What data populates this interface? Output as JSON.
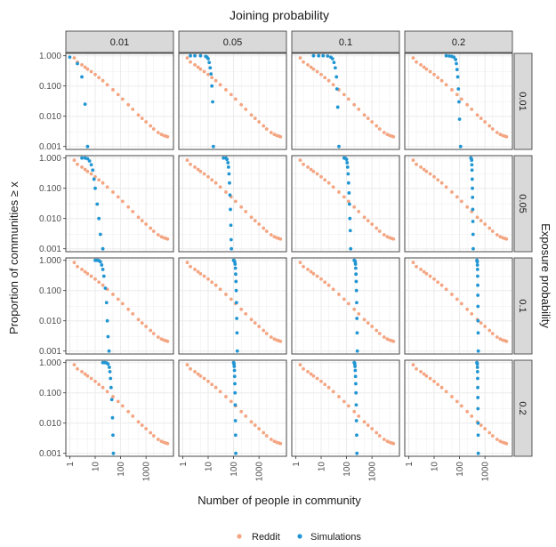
{
  "chart_data": {
    "type": "scatter",
    "title": "Joining probability",
    "xlabel": "Number of people in community",
    "ylabel": "Proportion of communities ≥ x",
    "right_label": "Exposure probability",
    "x_scale": "log",
    "y_scale": "log",
    "xlim": [
      0.7,
      12000
    ],
    "ylim": [
      0.0008,
      1.2
    ],
    "x_ticks": [
      1,
      10,
      100,
      1000
    ],
    "x_tick_labels": [
      "1",
      "10",
      "100",
      "1000"
    ],
    "y_ticks": [
      1,
      0.1,
      0.01,
      0.001
    ],
    "y_tick_labels": [
      "1.000",
      "0.100",
      "0.010",
      "0.001"
    ],
    "grid": true,
    "legend_position": "bottom",
    "column_facets": [
      "0.01",
      "0.05",
      "0.1",
      "0.2"
    ],
    "row_facets": [
      "0.01",
      "0.05",
      "0.1",
      "0.2"
    ],
    "colors": {
      "Reddit": "#f4a582",
      "Simulations": "#2196d3"
    },
    "reddit_series": {
      "name": "Reddit",
      "x": [
        1.5,
        2,
        3,
        4,
        5,
        7,
        10,
        14,
        20,
        30,
        50,
        80,
        120,
        200,
        300,
        500,
        700,
        1000,
        1500,
        2000,
        3000,
        4000,
        5000,
        6000,
        7000
      ],
      "y": [
        0.85,
        0.62,
        0.5,
        0.42,
        0.36,
        0.3,
        0.24,
        0.19,
        0.15,
        0.11,
        0.075,
        0.052,
        0.037,
        0.024,
        0.017,
        0.011,
        0.0085,
        0.0065,
        0.0048,
        0.0038,
        0.0029,
        0.0025,
        0.0023,
        0.0022,
        0.0021
      ]
    },
    "simulation_series": [
      {
        "row": "0.01",
        "col": "0.01",
        "x": [
          1,
          2,
          3,
          4,
          5
        ],
        "y": [
          0.9,
          0.55,
          0.2,
          0.025,
          0.001
        ]
      },
      {
        "row": "0.01",
        "col": "0.05",
        "x": [
          2,
          3,
          5,
          8,
          9,
          10,
          11,
          12,
          13,
          14,
          15,
          16
        ],
        "y": [
          1,
          1,
          1,
          0.95,
          0.9,
          0.8,
          0.6,
          0.4,
          0.25,
          0.1,
          0.03,
          0.001
        ]
      },
      {
        "row": "0.01",
        "col": "0.1",
        "x": [
          5,
          8,
          12,
          18,
          24,
          28,
          32,
          36,
          40,
          42,
          45,
          50
        ],
        "y": [
          1,
          1,
          1,
          0.98,
          0.9,
          0.8,
          0.6,
          0.4,
          0.2,
          0.08,
          0.02,
          0.001
        ]
      },
      {
        "row": "0.01",
        "col": "0.2",
        "x": [
          30,
          40,
          50,
          60,
          70,
          75,
          80,
          85,
          90,
          95,
          100,
          110
        ],
        "y": [
          1,
          0.98,
          0.95,
          0.9,
          0.75,
          0.55,
          0.35,
          0.2,
          0.08,
          0.03,
          0.008,
          0.001
        ]
      },
      {
        "row": "0.05",
        "col": "0.01",
        "x": [
          3,
          4,
          5,
          6,
          7,
          8,
          9,
          10,
          12,
          14,
          16,
          20
        ],
        "y": [
          1,
          1,
          0.95,
          0.8,
          0.6,
          0.4,
          0.2,
          0.1,
          0.03,
          0.01,
          0.003,
          0.001
        ]
      },
      {
        "row": "0.05",
        "col": "0.05",
        "x": [
          40,
          50,
          55,
          60,
          63,
          66,
          69,
          72,
          75,
          78,
          80,
          82
        ],
        "y": [
          1,
          1,
          0.9,
          0.7,
          0.5,
          0.3,
          0.15,
          0.06,
          0.02,
          0.006,
          0.002,
          0.001
        ]
      },
      {
        "row": "0.05",
        "col": "0.1",
        "x": [
          80,
          90,
          100,
          105,
          110,
          115,
          120,
          125,
          130,
          135,
          140,
          145
        ],
        "y": [
          1,
          0.98,
          0.9,
          0.7,
          0.5,
          0.3,
          0.15,
          0.07,
          0.03,
          0.01,
          0.004,
          0.001
        ]
      },
      {
        "row": "0.05",
        "col": "0.2",
        "x": [
          280,
          290,
          300,
          305,
          310,
          315,
          320,
          325,
          330,
          335,
          340,
          345
        ],
        "y": [
          1,
          0.95,
          0.85,
          0.6,
          0.4,
          0.2,
          0.1,
          0.05,
          0.02,
          0.008,
          0.003,
          0.001
        ]
      },
      {
        "row": "0.1",
        "col": "0.01",
        "x": [
          10,
          12,
          14,
          16,
          18,
          20,
          22,
          25,
          28,
          30,
          32,
          35
        ],
        "y": [
          1,
          1,
          0.98,
          0.9,
          0.7,
          0.5,
          0.3,
          0.12,
          0.04,
          0.01,
          0.003,
          0.001
        ]
      },
      {
        "row": "0.1",
        "col": "0.05",
        "x": [
          100,
          105,
          110,
          115,
          118,
          121,
          124,
          127,
          130,
          133,
          136,
          140
        ],
        "y": [
          1,
          0.98,
          0.9,
          0.75,
          0.55,
          0.35,
          0.2,
          0.1,
          0.04,
          0.012,
          0.004,
          0.001
        ]
      },
      {
        "row": "0.1",
        "col": "0.1",
        "x": [
          200,
          210,
          220,
          225,
          230,
          235,
          240,
          245,
          250,
          255,
          260,
          265
        ],
        "y": [
          1,
          0.97,
          0.9,
          0.75,
          0.55,
          0.35,
          0.2,
          0.1,
          0.04,
          0.012,
          0.004,
          0.001
        ]
      },
      {
        "row": "0.1",
        "col": "0.2",
        "x": [
          480,
          490,
          500,
          505,
          510,
          515,
          520,
          525,
          530,
          535,
          540,
          545
        ],
        "y": [
          1,
          0.97,
          0.9,
          0.7,
          0.5,
          0.3,
          0.15,
          0.07,
          0.03,
          0.01,
          0.004,
          0.001
        ]
      },
      {
        "row": "0.2",
        "col": "0.01",
        "x": [
          20,
          24,
          28,
          32,
          36,
          38,
          40,
          42,
          45,
          48,
          50,
          52
        ],
        "y": [
          1,
          1,
          0.98,
          0.9,
          0.7,
          0.5,
          0.3,
          0.15,
          0.06,
          0.015,
          0.004,
          0.001
        ]
      },
      {
        "row": "0.2",
        "col": "0.05",
        "x": [
          100,
          102,
          104,
          106,
          108,
          110,
          112,
          114,
          116,
          118,
          120,
          122
        ],
        "y": [
          1,
          0.98,
          0.9,
          0.75,
          0.55,
          0.35,
          0.2,
          0.1,
          0.04,
          0.012,
          0.004,
          0.001
        ]
      },
      {
        "row": "0.2",
        "col": "0.1",
        "x": [
          200,
          205,
          210,
          215,
          220,
          225,
          230,
          235,
          240,
          245,
          250,
          255
        ],
        "y": [
          1,
          0.98,
          0.9,
          0.75,
          0.55,
          0.35,
          0.2,
          0.1,
          0.04,
          0.012,
          0.004,
          0.001
        ]
      },
      {
        "row": "0.2",
        "col": "0.2",
        "x": [
          480,
          490,
          500,
          505,
          510,
          515,
          520,
          525,
          530,
          535,
          540,
          545
        ],
        "y": [
          1,
          0.97,
          0.9,
          0.7,
          0.5,
          0.3,
          0.15,
          0.07,
          0.03,
          0.01,
          0.004,
          0.001
        ]
      }
    ],
    "legend": [
      "Reddit",
      "Simulations"
    ]
  }
}
